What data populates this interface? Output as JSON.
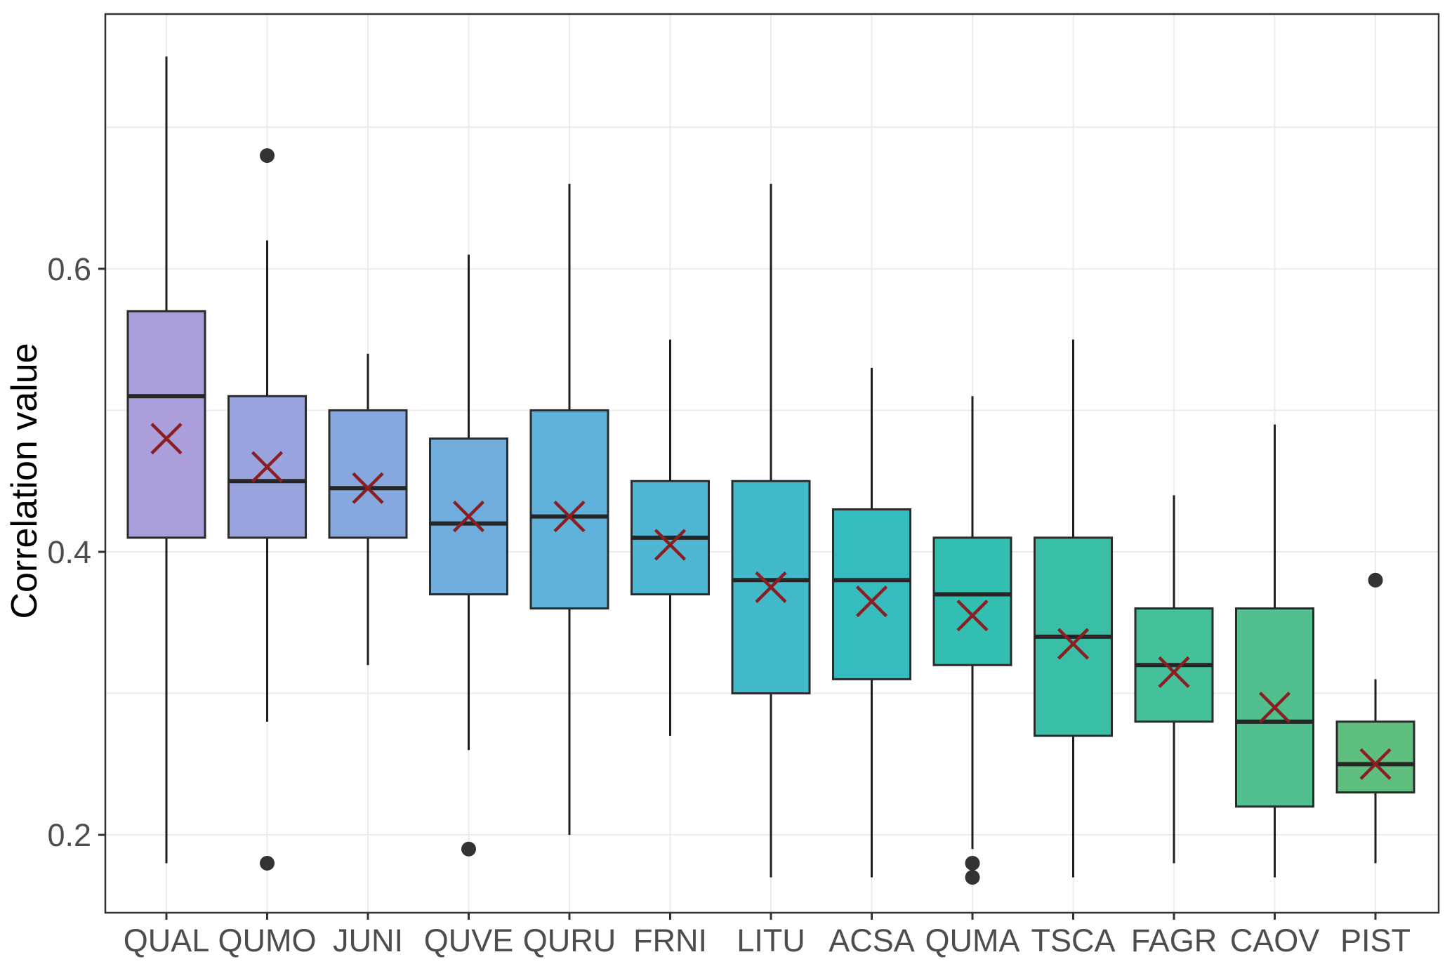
{
  "page": {
    "background": "#ffffff"
  },
  "chart_data": {
    "type": "boxplot",
    "title": "",
    "xlabel": "",
    "ylabel": "Correlation value",
    "ylim": [
      0.145,
      0.78
    ],
    "y_ticks": [
      0.2,
      0.4,
      0.6
    ],
    "y_tick_labels": [
      "0.2",
      "0.4",
      "0.6"
    ],
    "grid_values": [
      0.2,
      0.3,
      0.4,
      0.5,
      0.6,
      0.7
    ],
    "grid_vertical": "one line per category center",
    "legend_position": "none",
    "categories": [
      "QUAL",
      "QUMO",
      "JUNI",
      "QUVE",
      "QURU",
      "FRNI",
      "LITU",
      "ACSA",
      "QUMA",
      "TSCA",
      "FAGR",
      "CAOV",
      "PIST"
    ],
    "boxes": [
      {
        "label": "QUAL",
        "color": "#ab9fdb",
        "whisker_low": 0.18,
        "q1": 0.41,
        "median": 0.51,
        "q3": 0.57,
        "whisker_high": 0.75,
        "mean": 0.48,
        "outliers": []
      },
      {
        "label": "QUMO",
        "color": "#99a3de",
        "whisker_low": 0.28,
        "q1": 0.41,
        "median": 0.45,
        "q3": 0.51,
        "whisker_high": 0.62,
        "mean": 0.46,
        "outliers": [
          0.68,
          0.18
        ]
      },
      {
        "label": "JUNI",
        "color": "#86a8df",
        "whisker_low": 0.32,
        "q1": 0.41,
        "median": 0.445,
        "q3": 0.5,
        "whisker_high": 0.54,
        "mean": 0.445,
        "outliers": []
      },
      {
        "label": "QUVE",
        "color": "#70addd",
        "whisker_low": 0.26,
        "q1": 0.37,
        "median": 0.42,
        "q3": 0.48,
        "whisker_high": 0.61,
        "mean": 0.425,
        "outliers": [
          0.19
        ]
      },
      {
        "label": "QURU",
        "color": "#60b2da",
        "whisker_low": 0.2,
        "q1": 0.36,
        "median": 0.425,
        "q3": 0.5,
        "whisker_high": 0.66,
        "mean": 0.425,
        "outliers": []
      },
      {
        "label": "FRNI",
        "color": "#4fb6d3",
        "whisker_low": 0.27,
        "q1": 0.37,
        "median": 0.41,
        "q3": 0.45,
        "whisker_high": 0.55,
        "mean": 0.405,
        "outliers": []
      },
      {
        "label": "LITU",
        "color": "#41b9c9",
        "whisker_low": 0.17,
        "q1": 0.3,
        "median": 0.38,
        "q3": 0.45,
        "whisker_high": 0.66,
        "mean": 0.375,
        "outliers": []
      },
      {
        "label": "ACSA",
        "color": "#35bcbe",
        "whisker_low": 0.17,
        "q1": 0.31,
        "median": 0.38,
        "q3": 0.43,
        "whisker_high": 0.53,
        "mean": 0.365,
        "outliers": []
      },
      {
        "label": "QUMA",
        "color": "#33beb2",
        "whisker_low": 0.19,
        "q1": 0.32,
        "median": 0.37,
        "q3": 0.41,
        "whisker_high": 0.51,
        "mean": 0.355,
        "outliers": [
          0.18,
          0.17
        ]
      },
      {
        "label": "TSCA",
        "color": "#3abfa7",
        "whisker_low": 0.17,
        "q1": 0.27,
        "median": 0.34,
        "q3": 0.41,
        "whisker_high": 0.55,
        "mean": 0.335,
        "outliers": []
      },
      {
        "label": "FAGR",
        "color": "#44c09b",
        "whisker_low": 0.18,
        "q1": 0.28,
        "median": 0.32,
        "q3": 0.36,
        "whisker_high": 0.44,
        "mean": 0.315,
        "outliers": []
      },
      {
        "label": "CAOV",
        "color": "#52bf8e",
        "whisker_low": 0.17,
        "q1": 0.22,
        "median": 0.28,
        "q3": 0.36,
        "whisker_high": 0.49,
        "mean": 0.29,
        "outliers": []
      },
      {
        "label": "PIST",
        "color": "#5fbf7f",
        "whisker_low": 0.18,
        "q1": 0.23,
        "median": 0.25,
        "q3": 0.28,
        "whisker_high": 0.31,
        "mean": 0.25,
        "outliers": [
          0.38
        ]
      }
    ],
    "styles": {
      "mean_marker": "x-cross",
      "mean_color": "#8b1e22",
      "outlier_color": "#333333",
      "box_border_color": "#2b2b2b",
      "median_color": "#262626",
      "whisker_color": "#1f1f1f",
      "grid_color": "#ececec",
      "panel_border_color": "#333333",
      "axis_text_color": "#4d4d4d",
      "axis_title_color": "#000000",
      "background": "#ffffff"
    }
  }
}
